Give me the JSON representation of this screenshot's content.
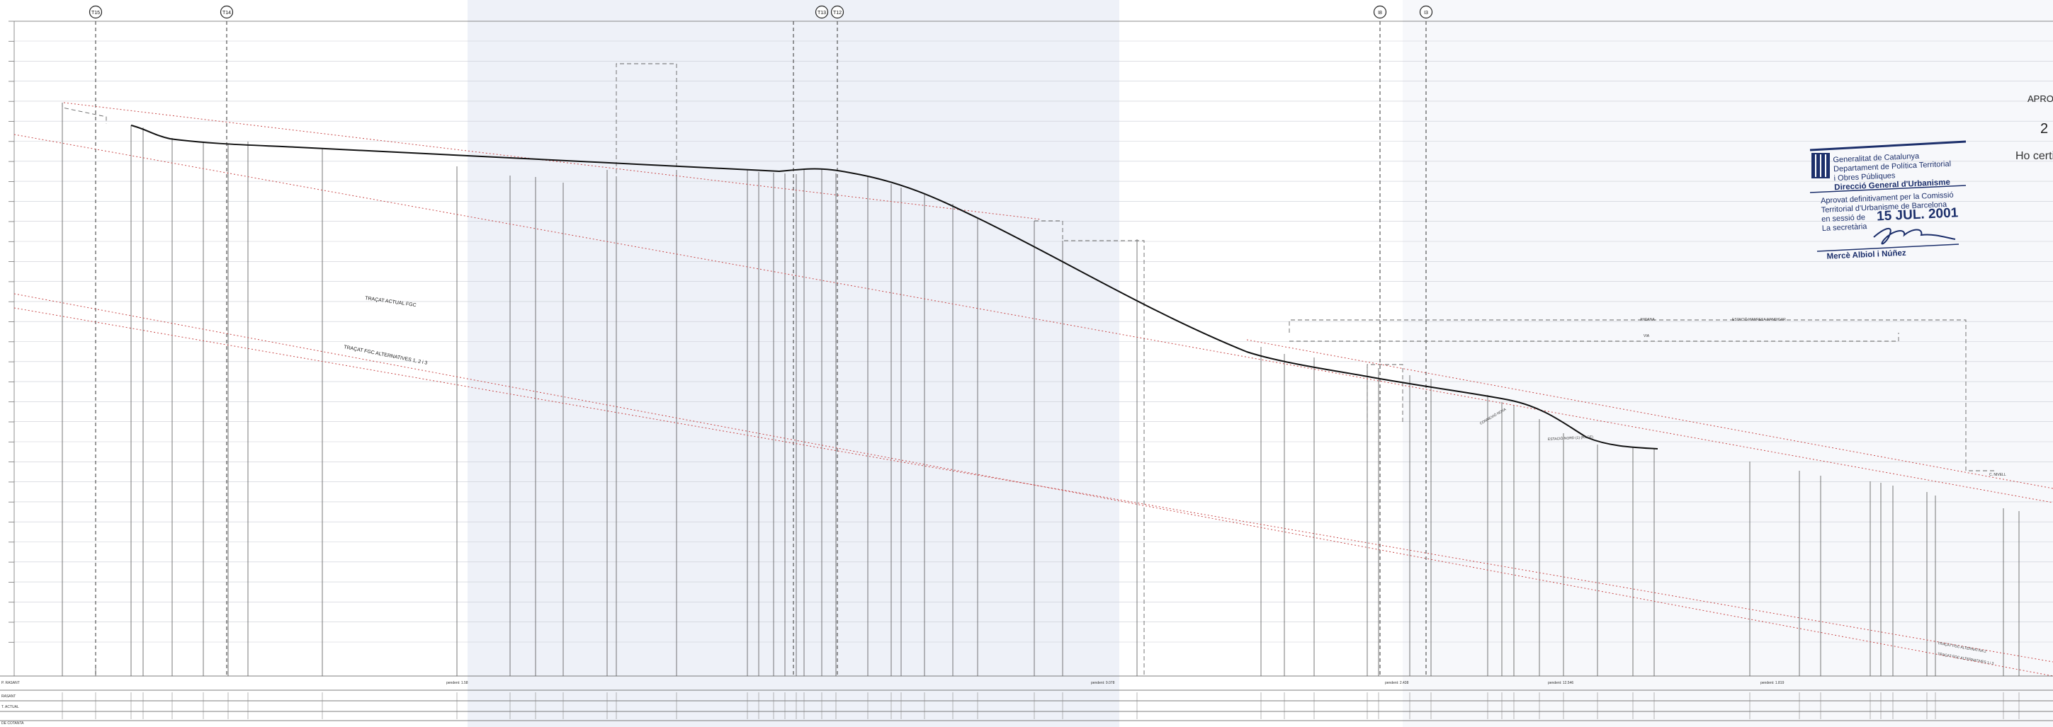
{
  "markers": [
    {
      "id": "marker-t15",
      "label": "T15"
    },
    {
      "id": "marker-t14",
      "label": "T14"
    },
    {
      "id": "marker-t13",
      "label": "T13"
    },
    {
      "id": "marker-t12",
      "label": "T12"
    },
    {
      "id": "marker-i8",
      "label": "I8"
    },
    {
      "id": "marker-i3",
      "label": "I3"
    }
  ],
  "profile_labels": {
    "traçat_actual": "TRAÇAT ACTUAL FGC",
    "traçat_alt_1": "TRAÇAT FGC ALTERNATIVES 1, 2 i 3",
    "estacio_rubi": "ESTACIÓ MANRESA MANDIGAR",
    "andana": "ANDANA",
    "via": "VIA",
    "estacio_nord": "ESTACIÓ NORD (1) (RAGE)",
    "alt_2": "TRAÇAT FGC ALTERNATIVA 2",
    "alt_1_3": "TRAÇAT FGC ALTERNATIVES 1 i 3",
    "c_nivell": "C. NIVELL",
    "connexio": "CONNEXIÓ NOVA"
  },
  "band": {
    "row1_label": "P. RASANT",
    "row2_label": "RASANT",
    "row3_label": "T. ACTUAL",
    "footer_label": "DE COTANTA",
    "pendents": [
      "pendent: 1.58",
      "pendent: 9.078",
      "pendent: 2.438",
      "pendent: 12.546",
      "pendent: 1.819"
    ]
  },
  "stamp": {
    "org1": "Generalitat de Catalunya",
    "org2": "Departament de Política Territorial",
    "org3": "i Obres Públiques",
    "org4": "Direcció General d'Urbanisme",
    "line1": "Aprovat definitivament per la Comissió",
    "line2": "Territorial d'Urbanisme de Barcelona",
    "line3": "en sessió de",
    "date": "15 JUL. 2001",
    "line4": "La secretària",
    "name": "Mercè Albiol i Núñez"
  },
  "edge_text": {
    "aprov": "APROV",
    "num": "2",
    "certif": "Ho certif"
  }
}
